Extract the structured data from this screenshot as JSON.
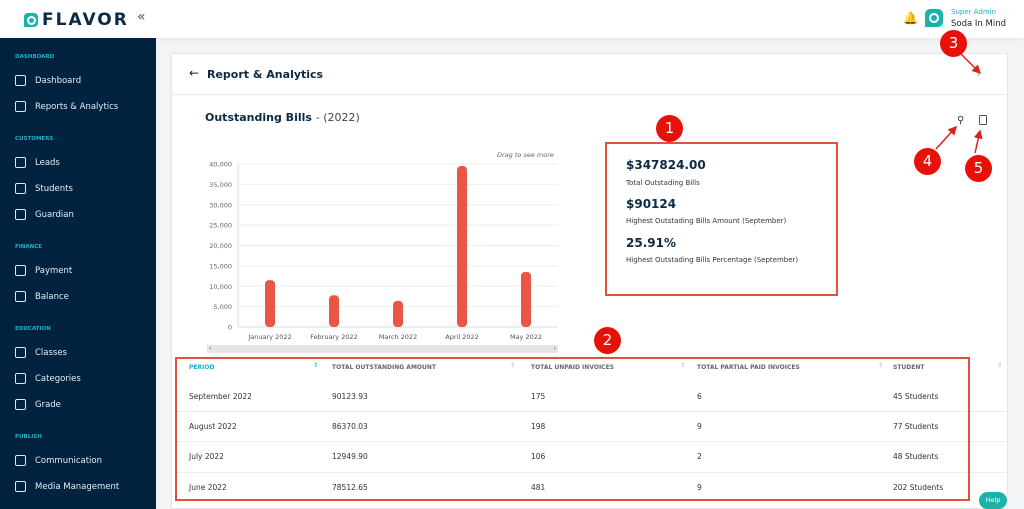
{
  "app": {
    "brand": "FLAVOR",
    "user_role": "Super Admin",
    "user_name": "Soda In Mind"
  },
  "sidebar": [
    {
      "section": "DASHBOARD",
      "items": [
        {
          "label": "Dashboard",
          "icon": "home-icon"
        },
        {
          "label": "Reports & Analytics",
          "icon": "chart-line-icon"
        }
      ]
    },
    {
      "section": "CUSTOMERS",
      "items": [
        {
          "label": "Leads",
          "icon": "signpost-icon"
        },
        {
          "label": "Students",
          "icon": "student-card-icon"
        },
        {
          "label": "Guardian",
          "icon": "guardian-icon"
        }
      ]
    },
    {
      "section": "FINANCE",
      "items": [
        {
          "label": "Payment",
          "icon": "credit-card-icon"
        },
        {
          "label": "Balance",
          "icon": "balance-icon"
        }
      ]
    },
    {
      "section": "EDUCATION",
      "items": [
        {
          "label": "Classes",
          "icon": "book-icon"
        },
        {
          "label": "Categories",
          "icon": "stack-icon"
        },
        {
          "label": "Grade",
          "icon": "hierarchy-icon"
        }
      ]
    },
    {
      "section": "PUBLISH",
      "items": [
        {
          "label": "Communication",
          "icon": "chat-icon"
        },
        {
          "label": "Media Management",
          "icon": "image-icon"
        }
      ]
    }
  ],
  "page": {
    "title": "Report & Analytics",
    "chart_heading": "Outstanding Bills",
    "chart_year": "- (2022)",
    "drag_hint": "Drag to see more",
    "help": "Help"
  },
  "summary": {
    "total": "$347824.00",
    "total_label": "Total Outstading Bills",
    "highest_amount": "$90124",
    "highest_amount_label": "Highest Outstading Bills Amount (September)",
    "highest_pct": "25.91%",
    "highest_pct_label": "Highest Outstading Bills Percentage (September)"
  },
  "chart_data": {
    "type": "bar",
    "categories": [
      "January 2022",
      "February 2022",
      "March 2022",
      "April 2022",
      "May 2022"
    ],
    "values": [
      11500,
      7800,
      6400,
      39500,
      13500
    ],
    "ylim": [
      0,
      40000
    ],
    "yticks": [
      "0",
      "5,000",
      "10,000",
      "15,000",
      "20,000",
      "25,000",
      "30,000",
      "35,000",
      "40,000"
    ],
    "color": "#ea5545",
    "grid": true
  },
  "table": {
    "columns": [
      "PERIOD",
      "TOTAL OUTSTANDING AMOUNT",
      "TOTAL UNPAID INVOICES",
      "TOTAL PARTIAL PAID INVOICES",
      "STUDENT"
    ],
    "rows": [
      [
        "September 2022",
        "90123.93",
        "175",
        "6",
        "45 Students"
      ],
      [
        "August 2022",
        "86370.03",
        "198",
        "9",
        "77 Students"
      ],
      [
        "July 2022",
        "12949.90",
        "106",
        "2",
        "48 Students"
      ],
      [
        "June 2022",
        "78512.65",
        "481",
        "9",
        "202 Students"
      ]
    ]
  },
  "annotations": [
    "1",
    "2",
    "3",
    "4",
    "5"
  ]
}
